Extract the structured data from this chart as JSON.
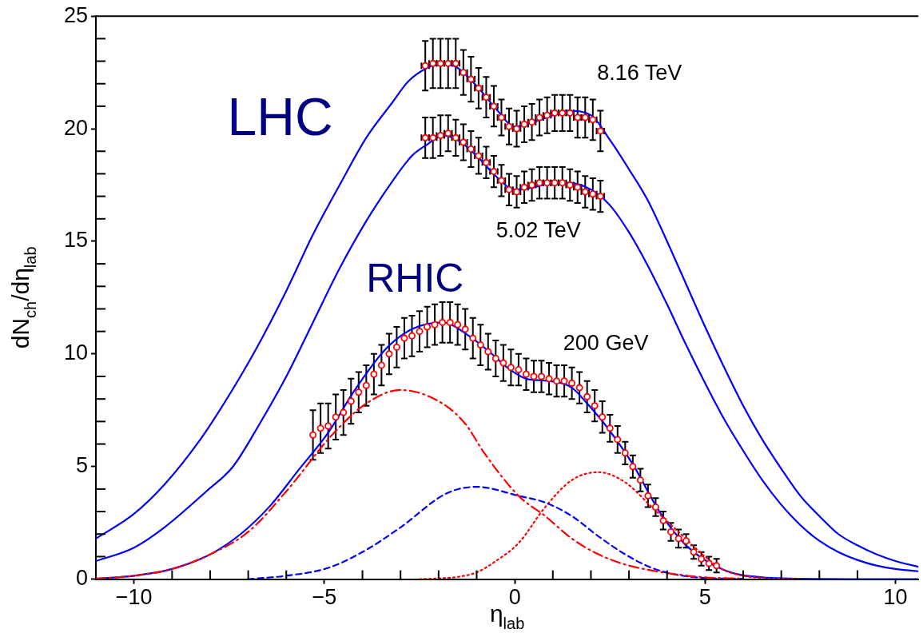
{
  "chart_data": {
    "type": "line",
    "xlabel": "η$_{lab}$",
    "ylabel": "dN$_{ch}$/dη$_{lab}$",
    "xlim": [
      -11,
      10.6
    ],
    "ylim": [
      0,
      25
    ],
    "xticks": [
      {
        "value": -10,
        "label": "−10"
      },
      {
        "value": -5,
        "label": "−5"
      },
      0,
      5,
      10
    ],
    "yticks": [
      0,
      5,
      10,
      15,
      20,
      25
    ],
    "grid": false,
    "legend": false,
    "annotations": [
      "LHC",
      "RHIC",
      "8.16 TeV",
      "5.02 TeV",
      "200 GeV"
    ],
    "series": [
      {
        "type": "scatter",
        "marker": "circle",
        "color": "#ff0000",
        "x": [
          -2.35,
          -2.15,
          -1.95,
          -1.75,
          -1.55,
          -1.35,
          -1.15,
          -0.95,
          -0.75,
          -0.55,
          -0.35,
          -0.15,
          0.05,
          0.25,
          0.45,
          0.65,
          0.85,
          1.05,
          1.25,
          1.45,
          1.65,
          1.85,
          2.05,
          2.25
        ],
        "values": [
          22.8,
          22.9,
          22.9,
          22.9,
          22.9,
          22.5,
          22.2,
          21.8,
          21.4,
          21.0,
          20.5,
          20.1,
          20.0,
          20.2,
          20.3,
          20.5,
          20.6,
          20.7,
          20.7,
          20.7,
          20.5,
          20.5,
          20.4,
          19.9
        ],
        "errors": [
          1.1,
          1.1,
          1.1,
          1.1,
          1.1,
          1.0,
          1.0,
          0.9,
          0.9,
          0.9,
          0.8,
          0.8,
          0.8,
          0.8,
          0.8,
          0.8,
          0.8,
          0.8,
          0.8,
          0.8,
          0.9,
          0.9,
          0.9,
          0.9
        ],
        "xerrors": [
          0.1,
          0.1,
          0.1,
          0.1,
          0.1,
          0.1,
          0.1,
          0.1,
          0.1,
          0.1,
          0.1,
          0.1,
          0.1,
          0.1,
          0.1,
          0.1,
          0.1,
          0.1,
          0.1,
          0.1,
          0.1,
          0.1,
          0.1,
          0.1
        ]
      },
      {
        "type": "scatter",
        "marker": "circle",
        "color": "#ff0000",
        "x": [
          -2.35,
          -2.15,
          -1.95,
          -1.75,
          -1.55,
          -1.35,
          -1.15,
          -0.95,
          -0.75,
          -0.55,
          -0.35,
          -0.15,
          0.05,
          0.25,
          0.45,
          0.65,
          0.85,
          1.05,
          1.25,
          1.45,
          1.65,
          1.85,
          2.05,
          2.25
        ],
        "values": [
          19.6,
          19.6,
          19.7,
          19.8,
          19.6,
          19.4,
          19.1,
          18.8,
          18.5,
          18.1,
          17.7,
          17.3,
          17.2,
          17.4,
          17.5,
          17.6,
          17.6,
          17.6,
          17.6,
          17.5,
          17.4,
          17.2,
          17.1,
          17.0
        ],
        "errors": [
          0.9,
          0.9,
          0.9,
          0.8,
          0.8,
          0.8,
          0.8,
          0.8,
          0.7,
          0.7,
          0.7,
          0.7,
          0.7,
          0.7,
          0.7,
          0.7,
          0.7,
          0.7,
          0.7,
          0.7,
          0.7,
          0.7,
          0.7,
          0.7
        ],
        "xerrors": [
          0.1,
          0.1,
          0.1,
          0.1,
          0.1,
          0.1,
          0.1,
          0.1,
          0.1,
          0.1,
          0.1,
          0.1,
          0.1,
          0.1,
          0.1,
          0.1,
          0.1,
          0.1,
          0.1,
          0.1,
          0.1,
          0.1,
          0.1,
          0.1
        ]
      },
      {
        "type": "scatter",
        "marker": "circle",
        "color": "#ff0000",
        "x": [
          -5.3,
          -5.1,
          -4.9,
          -4.7,
          -4.5,
          -4.3,
          -4.1,
          -3.9,
          -3.7,
          -3.5,
          -3.3,
          -3.1,
          -2.9,
          -2.7,
          -2.5,
          -2.3,
          -2.1,
          -1.9,
          -1.7,
          -1.5,
          -1.3,
          -1.1,
          -0.9,
          -0.7,
          -0.5,
          -0.3,
          -0.1,
          0.1,
          0.3,
          0.5,
          0.7,
          0.9,
          1.1,
          1.3,
          1.5,
          1.7,
          1.9,
          2.1,
          2.3,
          2.5,
          2.7,
          2.9,
          3.1,
          3.3,
          3.5,
          3.7,
          3.9,
          4.1,
          4.3,
          4.5,
          4.7,
          4.9,
          5.1,
          5.3
        ],
        "values": [
          6.4,
          6.7,
          6.8,
          7.2,
          7.4,
          7.9,
          8.3,
          8.6,
          9.1,
          9.5,
          10.0,
          10.3,
          10.7,
          10.8,
          11.0,
          11.2,
          11.3,
          11.4,
          11.4,
          11.3,
          11.1,
          10.7,
          10.4,
          10.1,
          9.8,
          9.6,
          9.4,
          9.3,
          9.1,
          9.0,
          9.0,
          8.9,
          8.8,
          8.8,
          8.7,
          8.5,
          8.1,
          7.7,
          7.2,
          6.7,
          6.2,
          5.6,
          5.0,
          4.4,
          3.7,
          3.2,
          2.6,
          2.1,
          1.8,
          1.7,
          1.2,
          0.9,
          0.7,
          0.6
        ],
        "errors": [
          1.1,
          1.1,
          1.0,
          1.0,
          1.0,
          1.0,
          0.9,
          0.9,
          0.9,
          0.9,
          0.9,
          0.9,
          0.9,
          0.9,
          0.9,
          0.9,
          0.9,
          0.9,
          0.9,
          0.9,
          0.9,
          0.9,
          0.9,
          0.8,
          0.8,
          0.8,
          0.8,
          0.7,
          0.7,
          0.7,
          0.7,
          0.7,
          0.7,
          0.7,
          0.7,
          0.7,
          0.7,
          0.7,
          0.7,
          0.6,
          0.6,
          0.5,
          0.5,
          0.5,
          0.5,
          0.4,
          0.4,
          0.4,
          0.4,
          0.3,
          0.3,
          0.3,
          0.3,
          0.3
        ]
      },
      {
        "line_style": "solid",
        "color": "#0000ff",
        "x": [
          -11,
          -10,
          -9.2,
          -8.3,
          -7.6,
          -6.8,
          -6,
          -5.3,
          -4.6,
          -3.9,
          -3.2,
          -2.8,
          -2.3,
          -1.9,
          -1.5,
          -1,
          -0.5,
          0,
          0.5,
          1,
          1.4,
          2,
          2.5,
          3,
          3.5,
          4,
          4.5,
          5,
          5.5,
          6,
          6.5,
          7,
          7.5,
          8,
          8.5,
          9,
          9.5,
          10,
          10.6
        ],
        "values": [
          1.8,
          2.9,
          4.2,
          6.1,
          7.9,
          10.2,
          12.8,
          15.3,
          17.5,
          19.6,
          21.2,
          22.1,
          22.7,
          22.9,
          22.7,
          21.9,
          20.9,
          20.1,
          20.3,
          20.6,
          20.8,
          20.6,
          19.5,
          18.2,
          16.8,
          15.0,
          13.1,
          11.2,
          9.4,
          7.7,
          6.2,
          4.9,
          3.7,
          2.8,
          2.0,
          1.5,
          1.1,
          0.8,
          0.55
        ]
      },
      {
        "line_style": "solid",
        "color": "#0000ff",
        "x": [
          -11,
          -10,
          -9.2,
          -8.1,
          -7.4,
          -6.7,
          -6,
          -5.3,
          -4.6,
          -3.9,
          -3.2,
          -2.7,
          -2.3,
          -1.9,
          -1.5,
          -1,
          -0.5,
          0,
          0.5,
          1,
          1.4,
          2,
          2.5,
          3,
          3.5,
          4,
          4.5,
          5,
          5.5,
          6,
          6.5,
          7,
          7.5,
          8,
          8.5,
          9,
          9.5,
          10,
          10.6
        ],
        "values": [
          0.8,
          1.4,
          2.3,
          3.9,
          5.0,
          6.9,
          9.0,
          11.4,
          13.8,
          15.9,
          17.7,
          18.8,
          19.3,
          19.7,
          19.5,
          18.8,
          17.9,
          17.3,
          17.4,
          17.6,
          17.6,
          17.3,
          16.6,
          15.4,
          13.9,
          12.2,
          10.4,
          8.7,
          7.1,
          5.7,
          4.4,
          3.3,
          2.4,
          1.7,
          1.2,
          0.85,
          0.6,
          0.45,
          0.35
        ]
      },
      {
        "line_style": "solid",
        "color": "#0000ff",
        "x": [
          -11,
          -10,
          -9,
          -8,
          -7.2,
          -6.4,
          -5.7,
          -4.9,
          -4.2,
          -3.4,
          -2.7,
          -1.9,
          -1.2,
          -0.6,
          -0.2,
          0.3,
          0.9,
          1.5,
          1.9,
          2.4,
          3.1,
          3.8,
          4.5,
          5.5,
          6.5,
          8,
          10.6
        ],
        "values": [
          0.02,
          0.15,
          0.45,
          1.1,
          2.0,
          3.3,
          4.8,
          6.5,
          8.4,
          10.2,
          11.1,
          11.4,
          10.8,
          10.0,
          9.4,
          8.9,
          8.8,
          8.5,
          7.8,
          6.8,
          5.1,
          3.0,
          1.5,
          0.4,
          0.08,
          0.01,
          0
        ]
      },
      {
        "line_style": "dashdot",
        "color": "#ff0000",
        "x": [
          -11,
          -10,
          -9,
          -8,
          -7,
          -6,
          -4.8,
          -3.9,
          -3,
          -1.9,
          -1.3,
          -0.8,
          0.1,
          0.8,
          1.5,
          2.2,
          2.9,
          3.9,
          5,
          6
        ],
        "values": [
          0.02,
          0.15,
          0.45,
          1.1,
          2.1,
          3.9,
          6.4,
          7.8,
          8.4,
          7.8,
          6.9,
          5.6,
          3.7,
          2.8,
          1.8,
          1.1,
          0.65,
          0.3,
          0.08,
          0.02
        ]
      },
      {
        "line_style": "dashed",
        "color": "#0000ff",
        "x": [
          -7,
          -6,
          -4.9,
          -3.9,
          -3,
          -1.8,
          -1,
          0.1,
          0.8,
          1.5,
          2.2,
          2.9,
          3.6,
          4.3,
          5,
          6
        ],
        "values": [
          0,
          0.15,
          0.5,
          1.3,
          2.3,
          3.8,
          4.1,
          3.7,
          3.4,
          2.8,
          1.9,
          1.1,
          0.5,
          0.18,
          0.05,
          0.01
        ]
      },
      {
        "line_style": "dotted",
        "color": "#ff0000",
        "x": [
          -2.5,
          -2,
          -1.5,
          -1,
          -0.5,
          0.1,
          0.8,
          1.5,
          2.2,
          2.9,
          3.6,
          4.3,
          5,
          5.5,
          6,
          6.5,
          7.5
        ],
        "values": [
          0,
          0.03,
          0.1,
          0.3,
          0.8,
          1.6,
          3.2,
          4.4,
          4.75,
          4.3,
          3.2,
          2.1,
          1.0,
          0.4,
          0.15,
          0.05,
          0
        ]
      }
    ]
  }
}
